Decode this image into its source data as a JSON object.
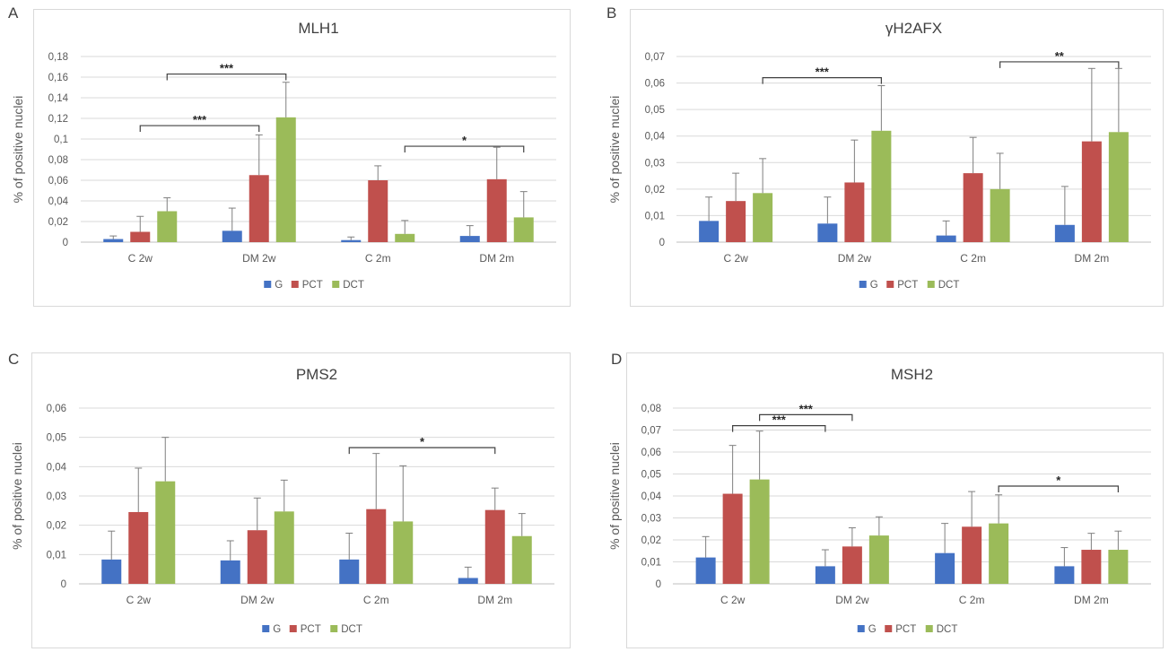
{
  "colors": {
    "G": "#4472c4",
    "PCT": "#c0504d",
    "DCT": "#9bbb59",
    "grid": "#d9d9d9",
    "error": "#7f7f7f",
    "bracket": "#404040"
  },
  "chart_data": [
    {
      "panel": "A",
      "type": "bar",
      "title": "MLH1",
      "ylabel": "% of positive nuclei",
      "categories": [
        "C 2w",
        "DM 2w",
        "C 2m",
        "DM 2m"
      ],
      "ylim": [
        0,
        0.18
      ],
      "yticks": [
        "0",
        "0,02",
        "0,04",
        "0,06",
        "0,08",
        "0,1",
        "0,12",
        "0,14",
        "0,16",
        "0,18"
      ],
      "ytick_values": [
        0,
        0.02,
        0.04,
        0.06,
        0.08,
        0.1,
        0.12,
        0.14,
        0.16,
        0.18
      ],
      "legend": [
        "G",
        "PCT",
        "DCT"
      ],
      "legend_position": "bottom",
      "grid": true,
      "series": [
        {
          "name": "G",
          "values": [
            0.003,
            0.011,
            0.002,
            0.006
          ],
          "errors": [
            0.003,
            0.022,
            0.003,
            0.01
          ]
        },
        {
          "name": "PCT",
          "values": [
            0.01,
            0.065,
            0.06,
            0.061
          ],
          "errors": [
            0.015,
            0.039,
            0.014,
            0.031
          ]
        },
        {
          "name": "DCT",
          "values": [
            0.03,
            0.121,
            0.008,
            0.024
          ],
          "errors": [
            0.013,
            0.034,
            0.013,
            0.025
          ]
        }
      ],
      "significance": [
        {
          "from": [
            0,
            "PCT"
          ],
          "to": [
            1,
            "PCT"
          ],
          "level": 0.113,
          "label": "***"
        },
        {
          "from": [
            0,
            "DCT"
          ],
          "to": [
            1,
            "DCT"
          ],
          "level": 0.163,
          "label": "***"
        },
        {
          "from": [
            2,
            "DCT"
          ],
          "to": [
            3,
            "DCT"
          ],
          "level": 0.093,
          "label": "*"
        }
      ]
    },
    {
      "panel": "B",
      "type": "bar",
      "title": "γH2AFX",
      "ylabel": "% of positive nuclei",
      "categories": [
        "C 2w",
        "DM 2w",
        "C 2m",
        "DM 2m"
      ],
      "ylim": [
        0,
        0.07
      ],
      "yticks": [
        "0",
        "0,01",
        "0,02",
        "0,03",
        "0,04",
        "0,05",
        "0,06",
        "0,07"
      ],
      "ytick_values": [
        0,
        0.01,
        0.02,
        0.03,
        0.04,
        0.05,
        0.06,
        0.07
      ],
      "legend": [
        "G",
        "PCT",
        "DCT"
      ],
      "legend_position": "bottom",
      "grid": true,
      "series": [
        {
          "name": "G",
          "values": [
            0.008,
            0.007,
            0.0025,
            0.0065
          ],
          "errors": [
            0.009,
            0.01,
            0.0055,
            0.0145
          ]
        },
        {
          "name": "PCT",
          "values": [
            0.0155,
            0.0225,
            0.026,
            0.038
          ],
          "errors": [
            0.0105,
            0.016,
            0.0135,
            0.0275
          ]
        },
        {
          "name": "DCT",
          "values": [
            0.0185,
            0.042,
            0.02,
            0.0415
          ],
          "errors": [
            0.013,
            0.017,
            0.0135,
            0.024
          ]
        }
      ],
      "significance": [
        {
          "from": [
            0,
            "DCT"
          ],
          "to": [
            1,
            "DCT"
          ],
          "level": 0.062,
          "label": "***"
        },
        {
          "from": [
            2,
            "DCT"
          ],
          "to": [
            3,
            "DCT"
          ],
          "level": 0.068,
          "label": "**"
        }
      ]
    },
    {
      "panel": "C",
      "type": "bar",
      "title": "PMS2",
      "ylabel": "% of positive nuclei",
      "categories": [
        "C 2w",
        "DM 2w",
        "C 2m",
        "DM 2m"
      ],
      "ylim": [
        0,
        0.06
      ],
      "yticks": [
        "0",
        "0,01",
        "0,02",
        "0,03",
        "0,04",
        "0,05",
        "0,06"
      ],
      "ytick_values": [
        0,
        0.01,
        0.02,
        0.03,
        0.04,
        0.05,
        0.06
      ],
      "legend": [
        "G",
        "PCT",
        "DCT"
      ],
      "legend_position": "bottom",
      "grid": true,
      "series": [
        {
          "name": "G",
          "values": [
            0.0083,
            0.008,
            0.0083,
            0.002
          ],
          "errors": [
            0.0097,
            0.0067,
            0.009,
            0.0037
          ]
        },
        {
          "name": "PCT",
          "values": [
            0.0245,
            0.0183,
            0.0255,
            0.0252
          ],
          "errors": [
            0.015,
            0.011,
            0.019,
            0.0075
          ]
        },
        {
          "name": "DCT",
          "values": [
            0.035,
            0.0247,
            0.0213,
            0.0163
          ],
          "errors": [
            0.015,
            0.0107,
            0.019,
            0.0077
          ]
        }
      ],
      "significance": [
        {
          "from": [
            2,
            "G"
          ],
          "to": [
            3,
            "PCT"
          ],
          "level": 0.0465,
          "label": "*"
        }
      ]
    },
    {
      "panel": "D",
      "type": "bar",
      "title": "MSH2",
      "ylabel": "% of positive nuclei",
      "categories": [
        "C 2w",
        "DM 2w",
        "C 2m",
        "DM 2m"
      ],
      "ylim": [
        0,
        0.08
      ],
      "yticks": [
        "0",
        "0,01",
        "0,02",
        "0,03",
        "0,04",
        "0,05",
        "0,06",
        "0,07",
        "0,08"
      ],
      "ytick_values": [
        0,
        0.01,
        0.02,
        0.03,
        0.04,
        0.05,
        0.06,
        0.07,
        0.08
      ],
      "legend": [
        "G",
        "PCT",
        "DCT"
      ],
      "legend_position": "bottom",
      "grid": true,
      "series": [
        {
          "name": "G",
          "values": [
            0.012,
            0.008,
            0.014,
            0.008
          ],
          "errors": [
            0.0095,
            0.0075,
            0.0135,
            0.0085
          ]
        },
        {
          "name": "PCT",
          "values": [
            0.041,
            0.017,
            0.026,
            0.0155
          ],
          "errors": [
            0.022,
            0.0085,
            0.016,
            0.0075
          ]
        },
        {
          "name": "DCT",
          "values": [
            0.0475,
            0.022,
            0.0275,
            0.0155
          ],
          "errors": [
            0.022,
            0.0085,
            0.013,
            0.0085
          ]
        }
      ],
      "significance": [
        {
          "from": [
            0,
            "PCT"
          ],
          "to": [
            1,
            "G"
          ],
          "level": 0.072,
          "label": "***"
        },
        {
          "from": [
            0,
            "DCT"
          ],
          "to": [
            1,
            "PCT"
          ],
          "level": 0.077,
          "label": "***"
        },
        {
          "from": [
            2,
            "DCT"
          ],
          "to": [
            3,
            "DCT"
          ],
          "level": 0.0445,
          "label": "*"
        }
      ]
    }
  ]
}
